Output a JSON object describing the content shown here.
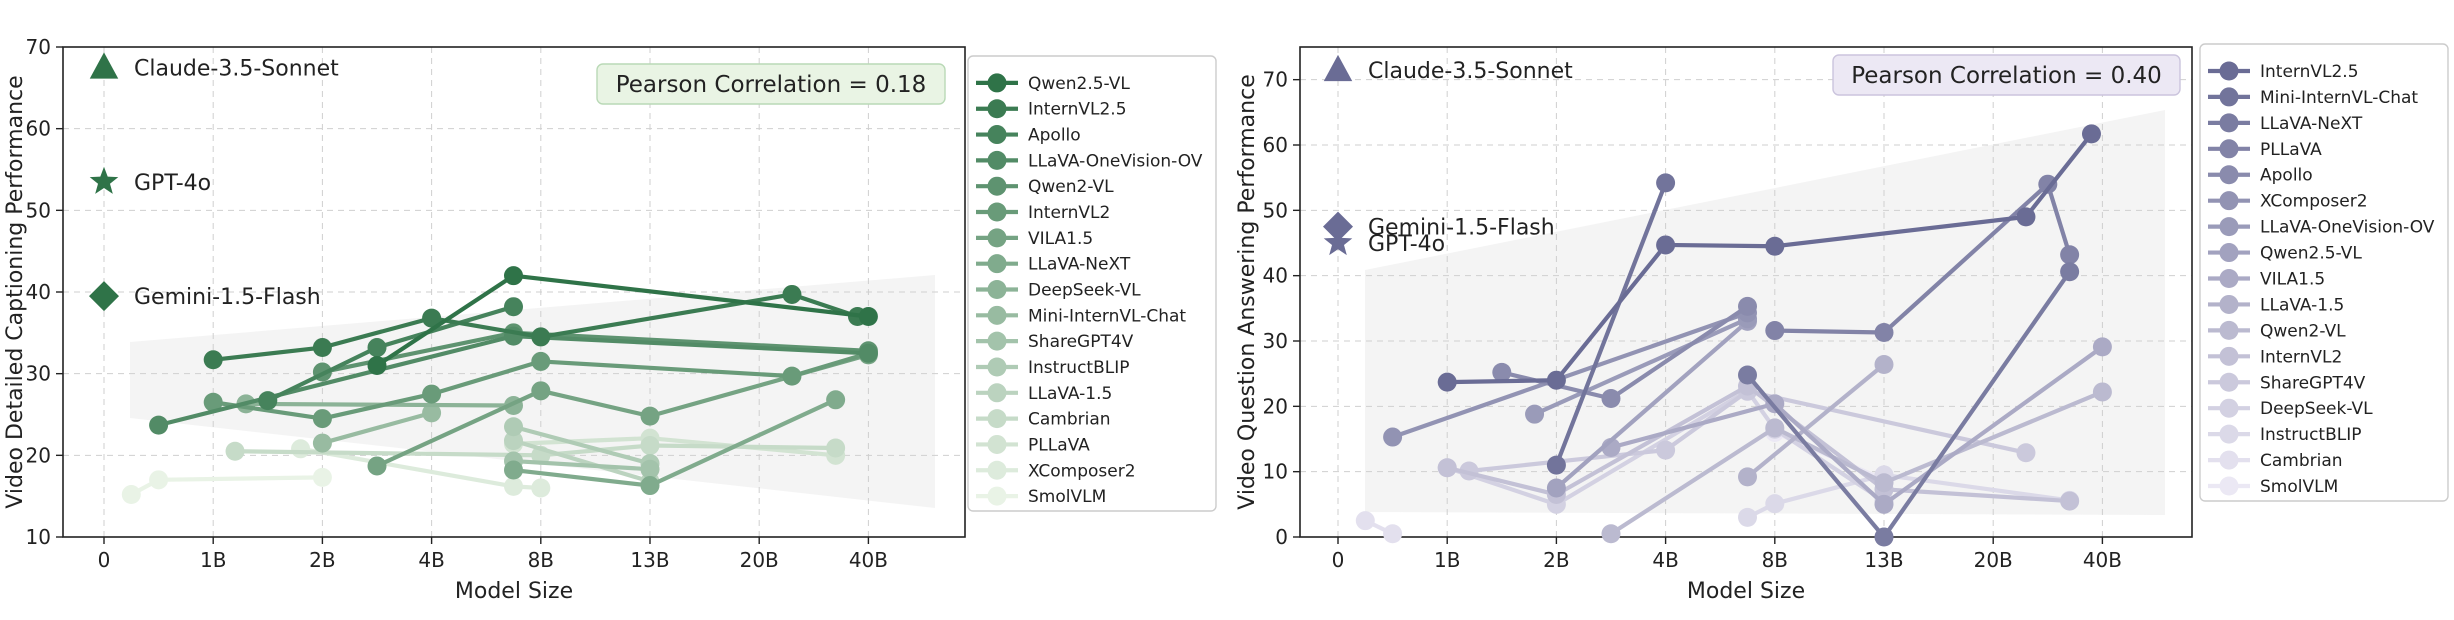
{
  "chart_data": [
    {
      "type": "line",
      "xlabel": "Model Size",
      "ylabel": "Video Detailed Captioning Performance",
      "x_ticks": [
        "0",
        "1B",
        "2B",
        "4B",
        "8B",
        "13B",
        "20B",
        "40B"
      ],
      "ylim": [
        10,
        70
      ],
      "y_ticks": [
        10,
        20,
        30,
        40,
        50,
        60,
        70
      ],
      "grid": true,
      "legend_position": "right, outside",
      "annotation": "Pearson Correlation = 0.18",
      "palette": "green",
      "proprietary": [
        {
          "name": "Claude-3.5-Sonnet",
          "marker": "triangle",
          "y": 67.5
        },
        {
          "name": "GPT-4o",
          "marker": "star",
          "y": 53.5
        },
        {
          "name": "Gemini-1.5-Flash",
          "marker": "diamond",
          "y": 39.5
        }
      ],
      "series": [
        {
          "name": "Qwen2.5-VL",
          "points": [
            [
              "3B",
              31.0
            ],
            [
              "7B",
              42.0
            ],
            [
              "72B",
              37.0
            ]
          ]
        },
        {
          "name": "InternVL2.5",
          "points": [
            [
              "1B",
              31.7
            ],
            [
              "2B",
              33.2
            ],
            [
              "4B",
              36.8
            ],
            [
              "8B",
              34.5
            ],
            [
              "26B",
              39.7
            ],
            [
              "38B",
              37.0
            ]
          ]
        },
        {
          "name": "Apollo",
          "points": [
            [
              "1.5B",
              26.7
            ],
            [
              "3B",
              33.2
            ],
            [
              "7B",
              38.2
            ]
          ]
        },
        {
          "name": "LLaVA-OneVision-OV",
          "points": [
            [
              "0.5B",
              23.7
            ],
            [
              "7B",
              34.6
            ],
            [
              "72B",
              32.5
            ]
          ]
        },
        {
          "name": "Qwen2-VL",
          "points": [
            [
              "2B",
              30.2
            ],
            [
              "7B",
              35.0
            ],
            [
              "72B",
              32.8
            ]
          ]
        },
        {
          "name": "InternVL2",
          "points": [
            [
              "1B",
              26.5
            ],
            [
              "2B",
              24.5
            ],
            [
              "4B",
              27.5
            ],
            [
              "8B",
              31.5
            ],
            [
              "26B",
              29.7
            ],
            [
              "40B",
              32.5
            ]
          ]
        },
        {
          "name": "VILA1.5",
          "points": [
            [
              "3B",
              18.7
            ],
            [
              "8B",
              27.9
            ],
            [
              "13B",
              24.8
            ],
            [
              "40B",
              32.3
            ]
          ]
        },
        {
          "name": "LLaVA-NeXT",
          "points": [
            [
              "7B",
              18.2
            ],
            [
              "13B",
              16.3
            ],
            [
              "34B",
              26.8
            ]
          ]
        },
        {
          "name": "DeepSeek-VL",
          "points": [
            [
              "1.3B",
              26.3
            ],
            [
              "7B",
              26.1
            ]
          ]
        },
        {
          "name": "Mini-InternVL-Chat",
          "points": [
            [
              "2B",
              21.5
            ],
            [
              "4B",
              25.2
            ]
          ]
        },
        {
          "name": "ShareGPT4V",
          "points": [
            [
              "7B",
              19.3
            ],
            [
              "13B",
              18.3
            ]
          ]
        },
        {
          "name": "InstructBLIP",
          "points": [
            [
              "7B",
              23.5
            ],
            [
              "13B",
              19.0
            ]
          ]
        },
        {
          "name": "LLaVA-1.5",
          "points": [
            [
              "7B",
              21.8
            ],
            [
              "13B",
              16.8
            ]
          ]
        },
        {
          "name": "Cambrian",
          "points": [
            [
              "1.2B",
              20.5
            ],
            [
              "8B",
              20.0
            ],
            [
              "13B",
              21.2
            ],
            [
              "34B",
              20.9
            ]
          ]
        },
        {
          "name": "PLLaVA",
          "points": [
            [
              "7B",
              21.4
            ],
            [
              "13B",
              22.1
            ],
            [
              "34B",
              20.0
            ]
          ]
        },
        {
          "name": "XComposer2",
          "points": [
            [
              "1.8B",
              20.8
            ],
            [
              "7B",
              16.2
            ],
            [
              "8B",
              16.0
            ]
          ]
        },
        {
          "name": "SmolVLM",
          "points": [
            [
              "0.25B",
              15.2
            ],
            [
              "0.5B",
              17.0
            ],
            [
              "2B",
              17.3
            ]
          ]
        }
      ]
    },
    {
      "type": "line",
      "xlabel": "Model Size",
      "ylabel": "Video Question Answering Performance",
      "x_ticks": [
        "0",
        "1B",
        "2B",
        "4B",
        "8B",
        "13B",
        "20B",
        "40B"
      ],
      "ylim": [
        0,
        75
      ],
      "y_ticks": [
        0,
        10,
        20,
        30,
        40,
        50,
        60,
        70
      ],
      "grid": true,
      "legend_position": "right, outside",
      "annotation": "Pearson Correlation = 0.40",
      "palette": "purple",
      "proprietary": [
        {
          "name": "Claude-3.5-Sonnet",
          "marker": "triangle",
          "y": 71.5
        },
        {
          "name": "Gemini-1.5-Flash",
          "marker": "diamond",
          "y": 47.5
        },
        {
          "name": "GPT-4o",
          "marker": "star",
          "y": 45.0
        }
      ],
      "series": [
        {
          "name": "InternVL2.5",
          "points": [
            [
              "1B",
              23.7
            ],
            [
              "2B",
              24.0
            ],
            [
              "4B",
              44.7
            ],
            [
              "8B",
              44.5
            ],
            [
              "26B",
              49.0
            ],
            [
              "38B",
              61.7
            ]
          ]
        },
        {
          "name": "Mini-InternVL-Chat",
          "points": [
            [
              "2B",
              11.0
            ],
            [
              "4B",
              54.2
            ]
          ]
        },
        {
          "name": "LLaVA-NeXT",
          "points": [
            [
              "7B",
              24.8
            ],
            [
              "13B",
              0.0
            ],
            [
              "34B",
              40.6
            ]
          ]
        },
        {
          "name": "PLLaVA",
          "points": [
            [
              "8B",
              31.6
            ],
            [
              "13B",
              31.3
            ],
            [
              "30B",
              54.0
            ],
            [
              "34B",
              43.2
            ]
          ]
        },
        {
          "name": "Apollo",
          "points": [
            [
              "1.5B",
              25.2
            ],
            [
              "3B",
              21.2
            ],
            [
              "7B",
              35.3
            ]
          ]
        },
        {
          "name": "XComposer2",
          "points": [
            [
              "0.5B",
              15.3
            ],
            [
              "7B",
              34.3
            ]
          ]
        },
        {
          "name": "LLaVA-OneVision-OV",
          "points": [
            [
              "1.8B",
              18.8
            ],
            [
              "7B",
              33.4
            ]
          ]
        },
        {
          "name": "Qwen2.5-VL",
          "points": [
            [
              "2B",
              7.5
            ],
            [
              "7B",
              33.0
            ]
          ]
        },
        {
          "name": "VILA1.5",
          "points": [
            [
              "3B",
              13.7
            ],
            [
              "8B",
              20.4
            ],
            [
              "13B",
              5.0
            ],
            [
              "40B",
              29.1
            ]
          ]
        },
        {
          "name": "LLaVA-1.5",
          "points": [
            [
              "7B",
              9.2
            ],
            [
              "13B",
              26.4
            ]
          ]
        },
        {
          "name": "Qwen2-VL",
          "points": [
            [
              "3B",
              0.5
            ],
            [
              "8B",
              16.7
            ],
            [
              "13B",
              8.3
            ],
            [
              "40B",
              22.2
            ]
          ]
        },
        {
          "name": "InternVL2",
          "points": [
            [
              "1B",
              10.6
            ],
            [
              "2B",
              6.5
            ],
            [
              "7B",
              23.1
            ],
            [
              "13B",
              7.3
            ],
            [
              "34B",
              5.5
            ]
          ]
        },
        {
          "name": "ShareGPT4V",
          "points": [
            [
              "1.2B",
              10.1
            ],
            [
              "4B",
              13.3
            ],
            [
              "7B",
              22.3
            ],
            [
              "26B",
              12.9
            ]
          ]
        },
        {
          "name": "DeepSeek-VL",
          "points": [
            [
              "1B",
              10.6
            ],
            [
              "2B",
              5.0
            ],
            [
              "7B",
              22.4
            ],
            [
              "8B",
              16.5
            ],
            [
              "13B",
              5.5
            ]
          ]
        },
        {
          "name": "InstructBLIP",
          "points": [
            [
              "7B",
              3.0
            ],
            [
              "8B",
              5.1
            ],
            [
              "13B",
              9.5
            ],
            [
              "34B",
              5.6
            ]
          ]
        },
        {
          "name": "Cambrian",
          "points": [
            [
              "0.25B",
              2.5
            ],
            [
              "0.5B",
              0.5
            ]
          ]
        },
        {
          "name": "SmolVLM",
          "points": [
            [
              "8B",
              16.0
            ],
            [
              "13B",
              8.8
            ]
          ]
        }
      ]
    }
  ]
}
